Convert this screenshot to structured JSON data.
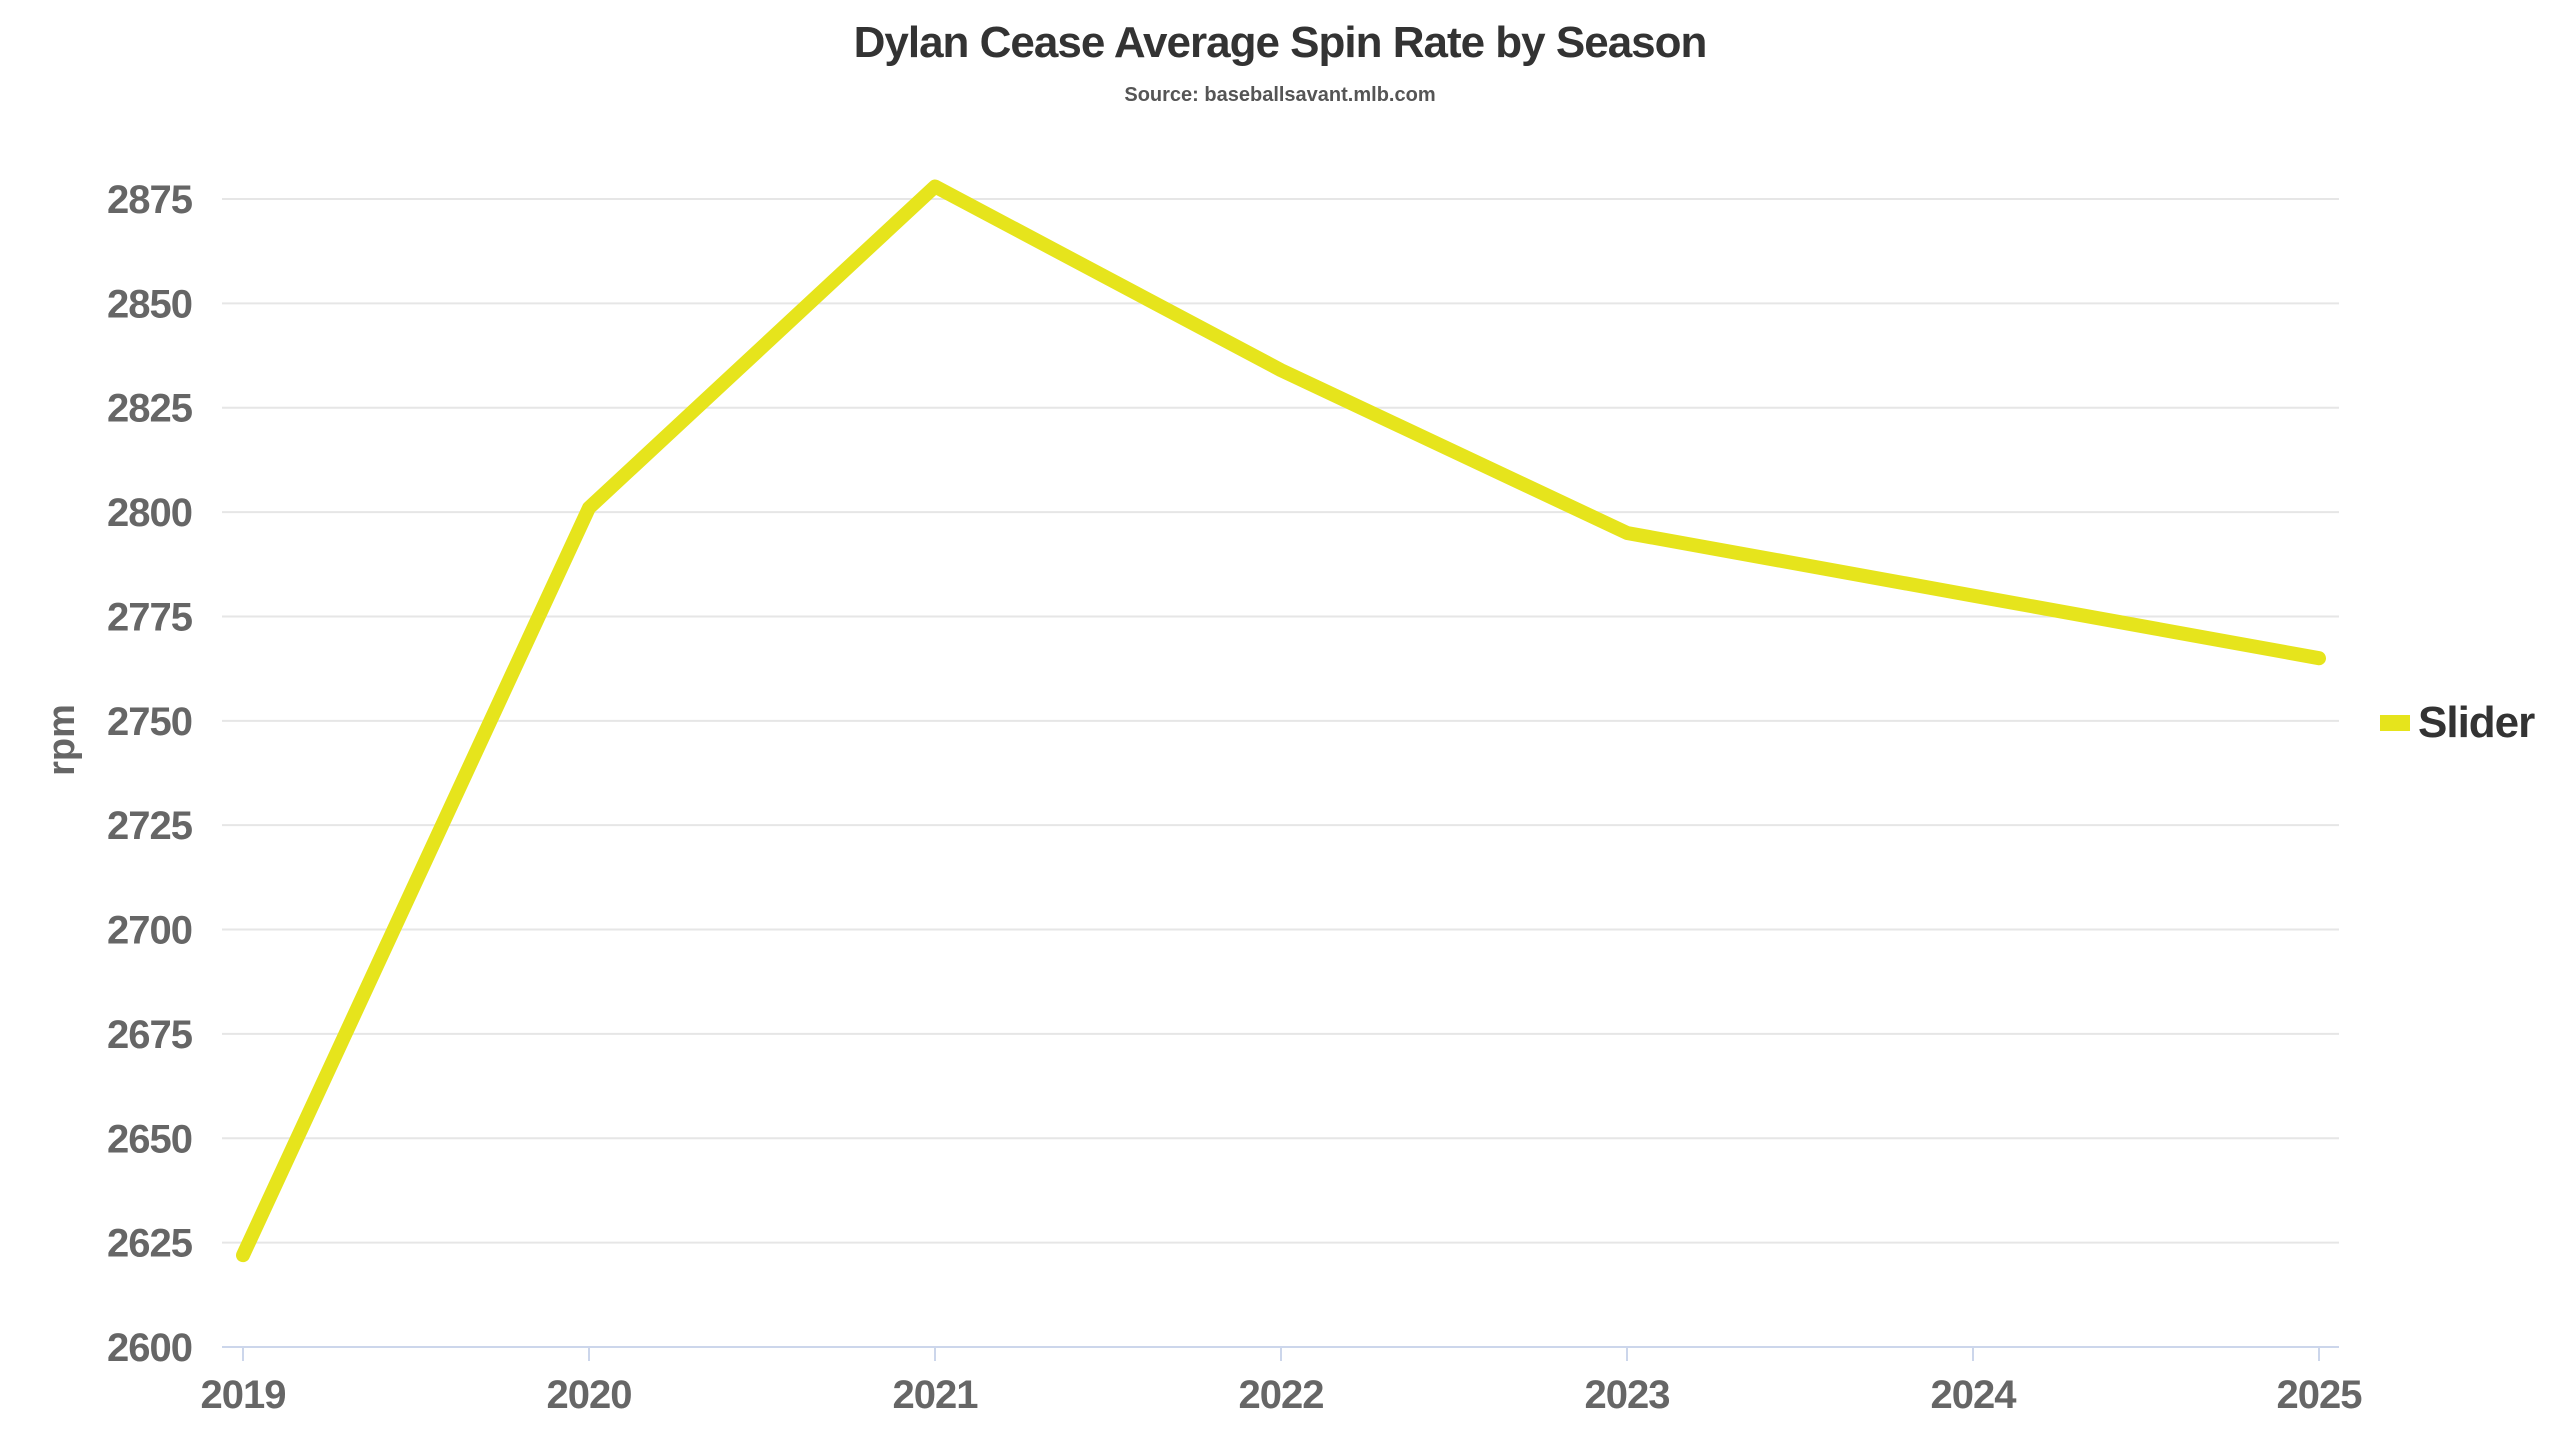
{
  "chart_data": {
    "type": "line",
    "title": "Dylan Cease Average Spin Rate by Season",
    "subtitle": "Source: baseballsavant.mlb.com",
    "xlabel": "",
    "ylabel": "rpm",
    "x": [
      "2019",
      "2020",
      "2021",
      "2022",
      "2023",
      "2024",
      "2025"
    ],
    "series": [
      {
        "name": "Slider",
        "color": "#e6e41c",
        "values": [
          2622,
          2801,
          2878,
          2834,
          2795,
          2780,
          2765
        ]
      }
    ],
    "ylim": [
      2600,
      2875
    ],
    "yticks": [
      "2600",
      "2625",
      "2650",
      "2675",
      "2700",
      "2725",
      "2750",
      "2775",
      "2800",
      "2825",
      "2850",
      "2875"
    ],
    "grid": true,
    "legend": "right"
  }
}
